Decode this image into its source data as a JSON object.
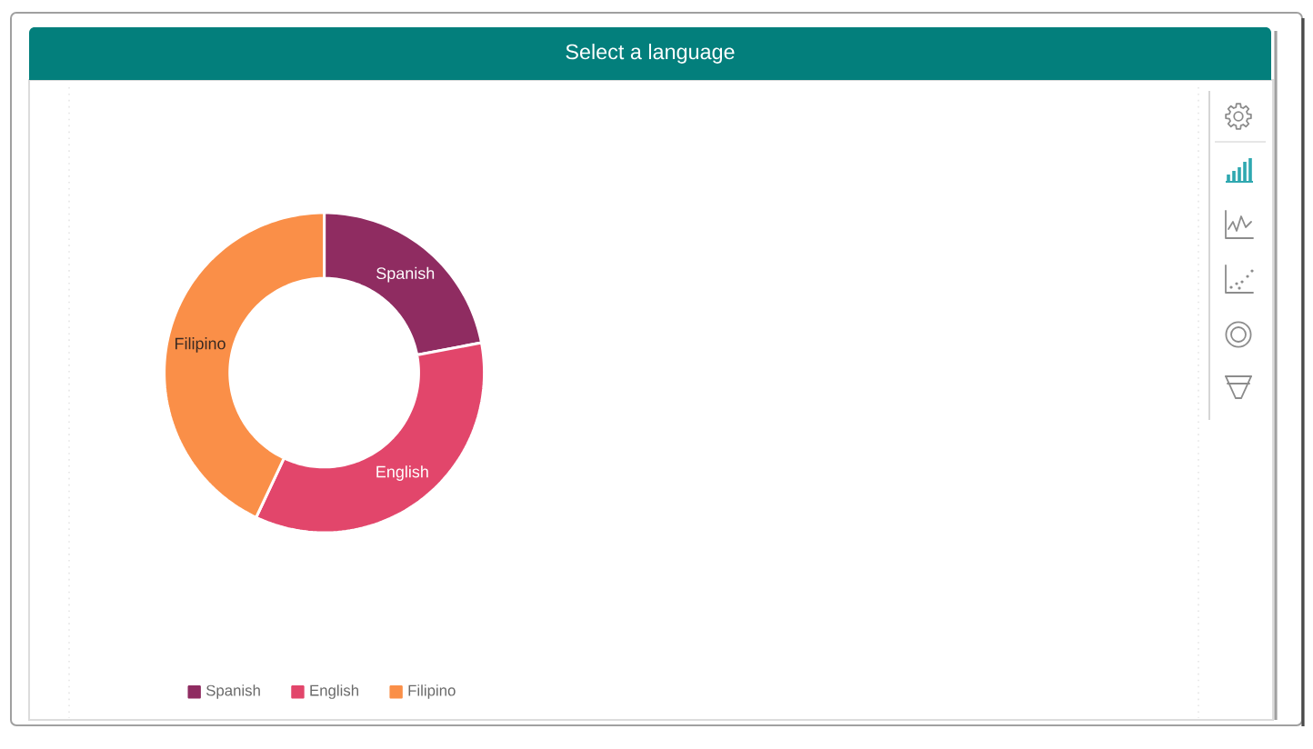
{
  "chart_data": {
    "type": "donut",
    "title": "Select a language",
    "categories": [
      "Spanish",
      "English",
      "Filipino"
    ],
    "values": [
      22,
      35,
      43
    ],
    "colors": [
      "#8f2c61",
      "#e2466b",
      "#fa8f48"
    ],
    "legend": "bottom"
  }
}
